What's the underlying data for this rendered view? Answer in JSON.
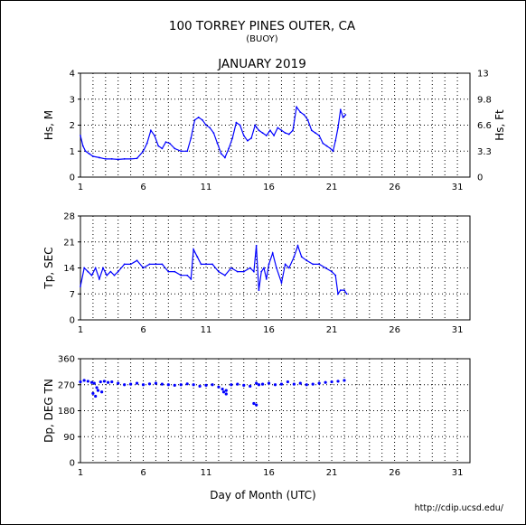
{
  "header": {
    "title": "100 TORREY PINES OUTER, CA",
    "subtitle": "(BUOY)",
    "month": "JANUARY 2019"
  },
  "footer": {
    "xlabel": "Day of Month (UTC)",
    "url": "http://cdip.ucsd.edu/"
  },
  "chart_data": [
    {
      "type": "line",
      "ylabel": "Hs, M",
      "ylabel_right": "Hs, Ft",
      "xlim": [
        1,
        32
      ],
      "ylim": [
        0,
        4
      ],
      "yticks": [
        "0",
        "1",
        "2",
        "3",
        "4"
      ],
      "yticks_right": [
        "0",
        "3.3",
        "6.6",
        "9.8",
        "13"
      ],
      "xticks": [
        "1",
        "6",
        "11",
        "16",
        "21",
        "26",
        "31"
      ],
      "grid": true,
      "color": "#0000ff",
      "x": [
        1.0,
        1.2,
        1.4,
        1.7,
        2.0,
        2.5,
        3.0,
        3.5,
        4.0,
        4.5,
        5.0,
        5.5,
        6.0,
        6.3,
        6.6,
        6.9,
        7.2,
        7.5,
        7.8,
        8.1,
        8.5,
        9.0,
        9.5,
        9.8,
        10.1,
        10.4,
        10.7,
        11.0,
        11.3,
        11.6,
        11.9,
        12.2,
        12.5,
        12.8,
        13.1,
        13.4,
        13.7,
        14.0,
        14.3,
        14.6,
        14.9,
        15.2,
        15.5,
        15.8,
        16.1,
        16.4,
        16.7,
        17.0,
        17.3,
        17.6,
        17.9,
        18.2,
        18.5,
        18.8,
        19.1,
        19.4,
        19.7,
        20.0,
        20.3,
        20.6,
        20.9,
        21.1,
        21.3,
        21.5,
        21.7,
        21.9,
        22.1
      ],
      "y": [
        1.6,
        1.2,
        1.0,
        0.9,
        0.8,
        0.75,
        0.7,
        0.7,
        0.68,
        0.7,
        0.7,
        0.72,
        1.0,
        1.3,
        1.8,
        1.6,
        1.2,
        1.1,
        1.35,
        1.3,
        1.1,
        1.0,
        1.0,
        1.5,
        2.2,
        2.3,
        2.2,
        2.0,
        1.9,
        1.7,
        1.3,
        0.9,
        0.75,
        1.1,
        1.5,
        2.1,
        2.0,
        1.6,
        1.4,
        1.5,
        2.0,
        1.8,
        1.7,
        1.6,
        1.8,
        1.6,
        1.9,
        1.8,
        1.7,
        1.65,
        1.8,
        2.7,
        2.5,
        2.4,
        2.2,
        1.8,
        1.7,
        1.6,
        1.3,
        1.2,
        1.1,
        1.0,
        1.4,
        1.9,
        2.6,
        2.3,
        2.4
      ]
    },
    {
      "type": "line",
      "ylabel": "Tp, SEC",
      "xlim": [
        1,
        32
      ],
      "ylim": [
        0,
        28
      ],
      "yticks": [
        "0",
        "7",
        "14",
        "21",
        "28"
      ],
      "xticks": [
        "1",
        "6",
        "11",
        "16",
        "21",
        "26",
        "31"
      ],
      "grid": true,
      "color": "#0000ff",
      "x": [
        1.0,
        1.3,
        1.6,
        1.9,
        2.2,
        2.5,
        2.8,
        3.1,
        3.4,
        3.7,
        4.0,
        4.5,
        5.0,
        5.5,
        6.0,
        6.5,
        7.0,
        7.5,
        8.0,
        8.5,
        9.0,
        9.5,
        9.8,
        10.0,
        10.3,
        10.6,
        11.0,
        11.5,
        12.0,
        12.5,
        13.0,
        13.5,
        14.0,
        14.5,
        14.8,
        15.0,
        15.2,
        15.4,
        15.6,
        15.8,
        16.0,
        16.3,
        16.6,
        17.0,
        17.3,
        17.6,
        18.0,
        18.3,
        18.6,
        19.0,
        19.5,
        20.0,
        20.5,
        21.0,
        21.3,
        21.5,
        21.7,
        22.0,
        22.2
      ],
      "y": [
        9,
        14,
        13,
        12,
        14,
        11,
        14,
        12,
        13,
        12,
        13,
        15,
        15,
        16,
        14,
        15,
        15,
        15,
        13,
        13,
        12,
        12,
        11,
        19,
        17,
        15,
        15,
        15,
        13,
        12,
        14,
        13,
        13,
        14,
        13,
        20,
        8,
        13,
        14,
        11,
        15,
        18,
        14,
        10,
        15,
        14,
        17,
        20,
        17,
        16,
        15,
        15,
        14,
        13,
        12,
        7,
        8,
        8,
        7
      ]
    },
    {
      "type": "scatter",
      "ylabel": "Dp, DEG TN",
      "xlim": [
        1,
        32
      ],
      "ylim": [
        0,
        360
      ],
      "yticks": [
        "0",
        "90",
        "180",
        "270",
        "360"
      ],
      "xticks": [
        "1",
        "6",
        "11",
        "16",
        "21",
        "26",
        "31"
      ],
      "grid": true,
      "color": "#0000ff",
      "x": [
        1.0,
        1.3,
        1.6,
        1.9,
        2.1,
        2.3,
        2.6,
        2.9,
        3.2,
        3.5,
        4.0,
        4.5,
        5.0,
        5.5,
        6.0,
        6.5,
        7.0,
        7.5,
        8.0,
        8.5,
        9.0,
        9.5,
        10.0,
        10.5,
        11.0,
        11.5,
        12.0,
        12.3,
        12.6,
        13.0,
        13.5,
        14.0,
        14.5,
        15.0,
        15.2,
        15.5,
        16.0,
        16.5,
        17.0,
        17.5,
        18.0,
        18.5,
        19.0,
        19.5,
        20.0,
        20.5,
        21.0,
        21.5,
        22.0,
        2.0,
        2.2,
        2.4,
        2.7,
        12.4,
        12.6,
        14.8,
        15.0
      ],
      "y": [
        280,
        285,
        282,
        278,
        275,
        260,
        280,
        282,
        278,
        280,
        275,
        270,
        272,
        275,
        270,
        273,
        275,
        272,
        270,
        268,
        270,
        273,
        270,
        265,
        268,
        270,
        262,
        255,
        250,
        270,
        272,
        268,
        265,
        275,
        270,
        272,
        275,
        270,
        272,
        280,
        272,
        275,
        270,
        272,
        275,
        278,
        280,
        282,
        285,
        240,
        230,
        250,
        245,
        245,
        238,
        205,
        200
      ]
    }
  ]
}
